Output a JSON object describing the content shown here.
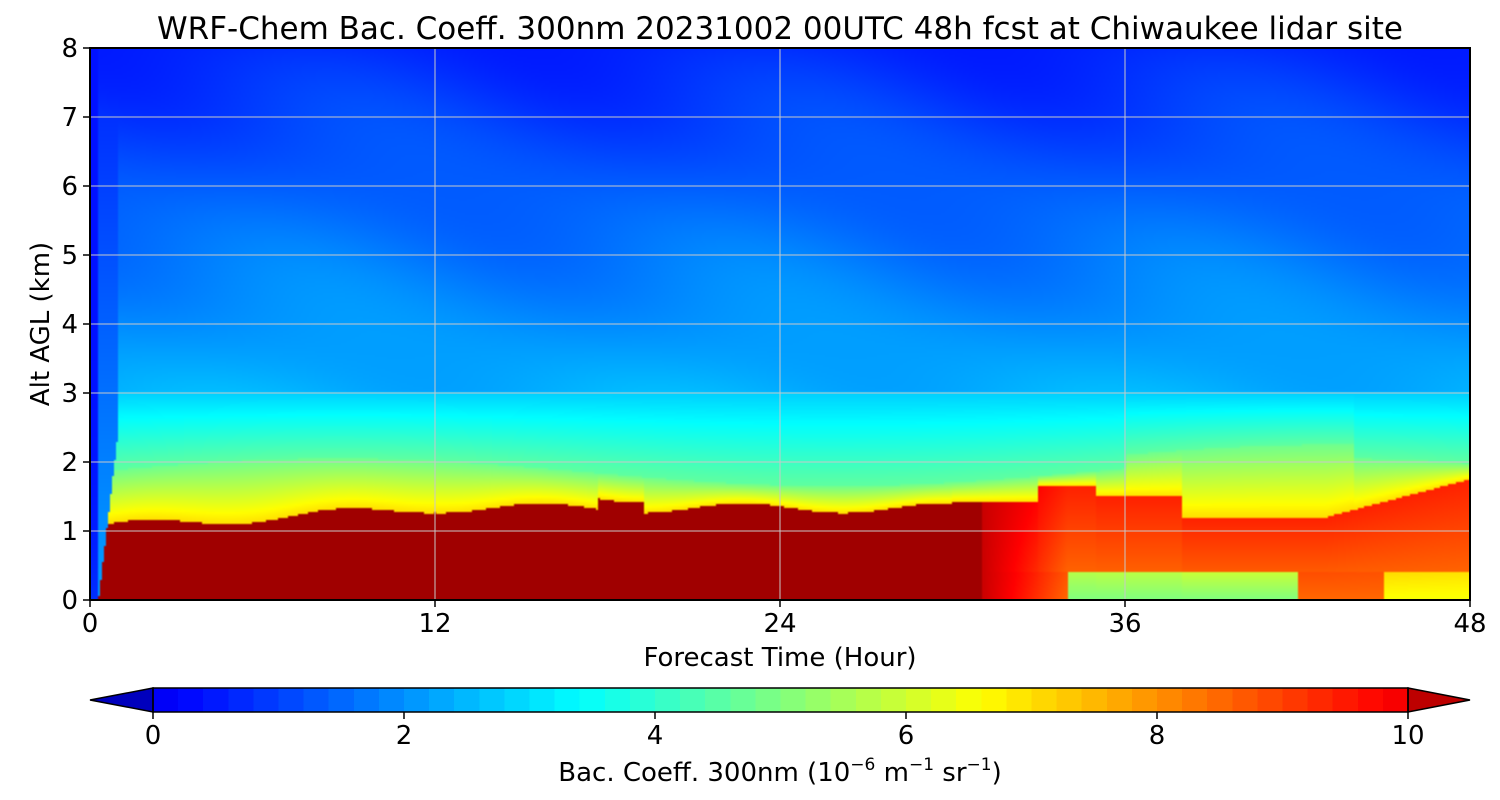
{
  "chart_data": {
    "type": "heatmap",
    "title": "WRF-Chem Bac. Coeff. 300nm  20231002 00UTC 48h fcst at Chiwaukee lidar site",
    "xlabel": "Forecast Time (Hour)",
    "ylabel": "Alt AGL (km)",
    "xlim": [
      0,
      48
    ],
    "ylim": [
      0,
      8
    ],
    "x_ticks": [
      "0",
      "12",
      "24",
      "36",
      "48"
    ],
    "x_tick_values": [
      0,
      12,
      24,
      36,
      48
    ],
    "y_ticks": [
      "0",
      "1",
      "2",
      "3",
      "4",
      "5",
      "6",
      "7",
      "8"
    ],
    "y_tick_values": [
      0,
      1,
      2,
      3,
      4,
      5,
      6,
      7,
      8
    ],
    "grid": true,
    "colormap": "jet",
    "colorbar": {
      "label_main": "Bac. Coeff. 300nm  (10",
      "label_exp1": "−6",
      "label_mid": " m",
      "label_exp2": "−1",
      "label_sr": " sr",
      "label_exp3": "−1",
      "label_end": ")",
      "range": [
        0,
        10
      ],
      "extend": "both",
      "ticks": [
        "0",
        "2",
        "4",
        "6",
        "8",
        "10"
      ],
      "tick_values": [
        0,
        2,
        4,
        6,
        8,
        10
      ]
    },
    "field": {
      "times": [
        0,
        0.5,
        1,
        1.5,
        3,
        6,
        9,
        12,
        15,
        18,
        19,
        21,
        24,
        27,
        30,
        31.5,
        33,
        34.5,
        36,
        39,
        42,
        44,
        45.5,
        47,
        48
      ],
      "altitudes": [
        0,
        0.1,
        0.3,
        0.6,
        0.9,
        1.0,
        1.15,
        1.3,
        1.45,
        1.65,
        1.85,
        2.05,
        2.3,
        2.6,
        2.9,
        3.1,
        3.5,
        4.0,
        4.5,
        5.0,
        5.5,
        6.0,
        6.5,
        7.0,
        8.0
      ]
    }
  }
}
